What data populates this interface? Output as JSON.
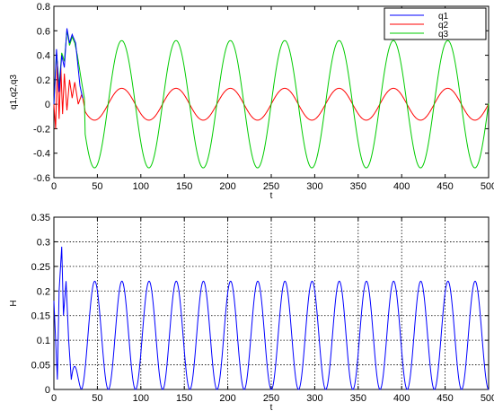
{
  "chart_data": [
    {
      "type": "line",
      "xlabel": "t",
      "ylabel": "q1,q2,q3",
      "xlim": [
        0,
        500
      ],
      "ylim": [
        -0.6,
        0.8
      ],
      "x_ticks": [
        0,
        50,
        100,
        150,
        200,
        250,
        300,
        350,
        400,
        450,
        500
      ],
      "y_ticks": [
        -0.6,
        -0.4,
        -0.2,
        0,
        0.2,
        0.4,
        0.6,
        0.8
      ],
      "x_tick_labels": [
        "0",
        "50",
        "100",
        "150",
        "200",
        "250",
        "300",
        "350",
        "400",
        "450",
        "500"
      ],
      "y_tick_labels": [
        "-0.6",
        "-0.4",
        "-0.2",
        "0",
        "0.2",
        "0.4",
        "0.6",
        "0.8"
      ],
      "grid": false,
      "legend_position": "top-right",
      "series": [
        {
          "name": "q1",
          "color": "#0000ff",
          "description_points": [
            [
              0,
              0
            ],
            [
              3,
              0.45
            ],
            [
              6,
              0.1
            ],
            [
              9,
              0.4
            ],
            [
              12,
              0.3
            ],
            [
              15,
              0.62
            ],
            [
              18,
              0.5
            ],
            [
              21,
              0.57
            ],
            [
              25,
              0.5
            ],
            [
              30,
              0.15
            ],
            [
              33,
              0.05
            ]
          ],
          "after_transient": "overlaps q3"
        },
        {
          "name": "q2",
          "color": "#ff0000",
          "steady_amplitude": 0.13,
          "steady_period": 62.5,
          "steady_phase_peak_x": 78,
          "transient": [
            [
              0,
              0
            ],
            [
              2,
              -0.2
            ],
            [
              4,
              0.35
            ],
            [
              6,
              -0.12
            ],
            [
              8,
              0.3
            ],
            [
              10,
              -0.08
            ],
            [
              12,
              0.25
            ],
            [
              15,
              -0.05
            ],
            [
              18,
              0.2
            ],
            [
              21,
              0.05
            ],
            [
              24,
              0.18
            ],
            [
              28,
              0.0
            ],
            [
              32,
              0.08
            ]
          ]
        },
        {
          "name": "q3",
          "color": "#00cc00",
          "steady_amplitude": 0.52,
          "steady_period": 62.5,
          "steady_phase_peak_x": 78,
          "transient": [
            [
              0,
              0
            ],
            [
              3,
              0.42
            ],
            [
              6,
              0.15
            ],
            [
              9,
              0.42
            ],
            [
              12,
              0.35
            ],
            [
              15,
              0.6
            ],
            [
              18,
              0.48
            ],
            [
              21,
              0.55
            ],
            [
              24,
              0.5
            ],
            [
              27,
              0.4
            ],
            [
              31,
              0.22
            ],
            [
              35,
              0.05
            ]
          ]
        }
      ]
    },
    {
      "type": "line",
      "xlabel": "t",
      "ylabel": "H",
      "xlim": [
        0,
        500
      ],
      "ylim": [
        0,
        0.35
      ],
      "x_ticks": [
        0,
        50,
        100,
        150,
        200,
        250,
        300,
        350,
        400,
        450,
        500
      ],
      "y_ticks": [
        0,
        0.05,
        0.1,
        0.15,
        0.2,
        0.25,
        0.3,
        0.35
      ],
      "x_tick_labels": [
        "0",
        "50",
        "100",
        "150",
        "200",
        "250",
        "300",
        "350",
        "400",
        "450",
        "500"
      ],
      "y_tick_labels": [
        "0",
        "0.05",
        "0.1",
        "0.15",
        "0.2",
        "0.25",
        "0.3",
        "0.35"
      ],
      "grid": true,
      "series": [
        {
          "color": "#0000ff",
          "steady_min": 0.0,
          "steady_max": 0.22,
          "steady_period": 31.25,
          "first_steady_peak_x": 47,
          "transient": [
            [
              0,
              0.18
            ],
            [
              2,
              0.1
            ],
            [
              4,
              0.02
            ],
            [
              6,
              0.2
            ],
            [
              9,
              0.29
            ],
            [
              11,
              0.15
            ],
            [
              14,
              0.22
            ],
            [
              17,
              0.1
            ],
            [
              20,
              0.02
            ]
          ]
        }
      ]
    }
  ]
}
